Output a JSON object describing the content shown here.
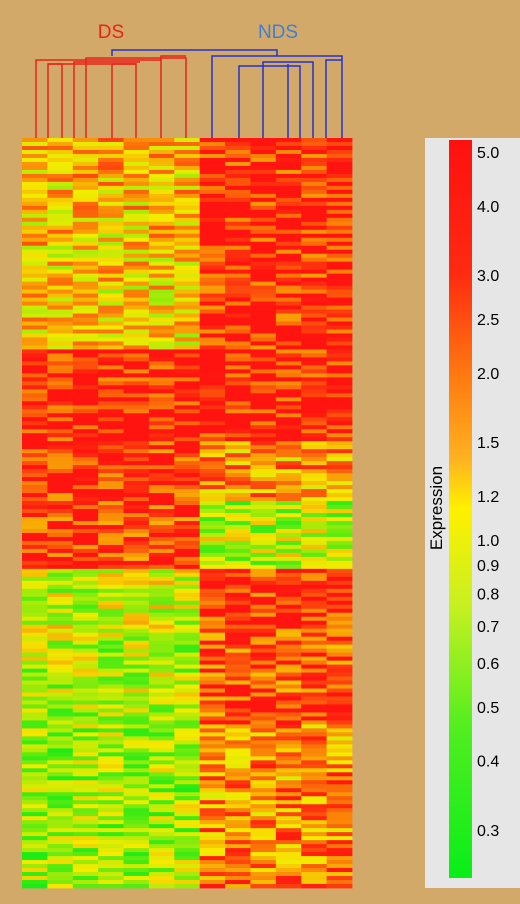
{
  "chart_data": {
    "type": "heatmap",
    "groups": [
      {
        "label": "DS",
        "color": "#e8231b",
        "columns": 7
      },
      {
        "label": "NDS",
        "color": "#3d7fd6",
        "columns": 6
      }
    ],
    "colorbar": {
      "title": "Expression",
      "ticks": [
        "5.0",
        "4.0",
        "3.0",
        "2.5",
        "2.0",
        "1.5",
        "1.2",
        "1.0",
        "0.9",
        "0.8",
        "0.7",
        "0.6",
        "0.5",
        "0.4",
        "0.3"
      ],
      "scale": "log",
      "range": [
        0.25,
        5.0
      ],
      "colors": {
        "low": "#10f01a",
        "mid": "#f5f000",
        "high": "#ff1a10"
      }
    },
    "dendrogram_colors": {
      "DS": "#e8231b",
      "NDS": "#2233cc"
    }
  }
}
